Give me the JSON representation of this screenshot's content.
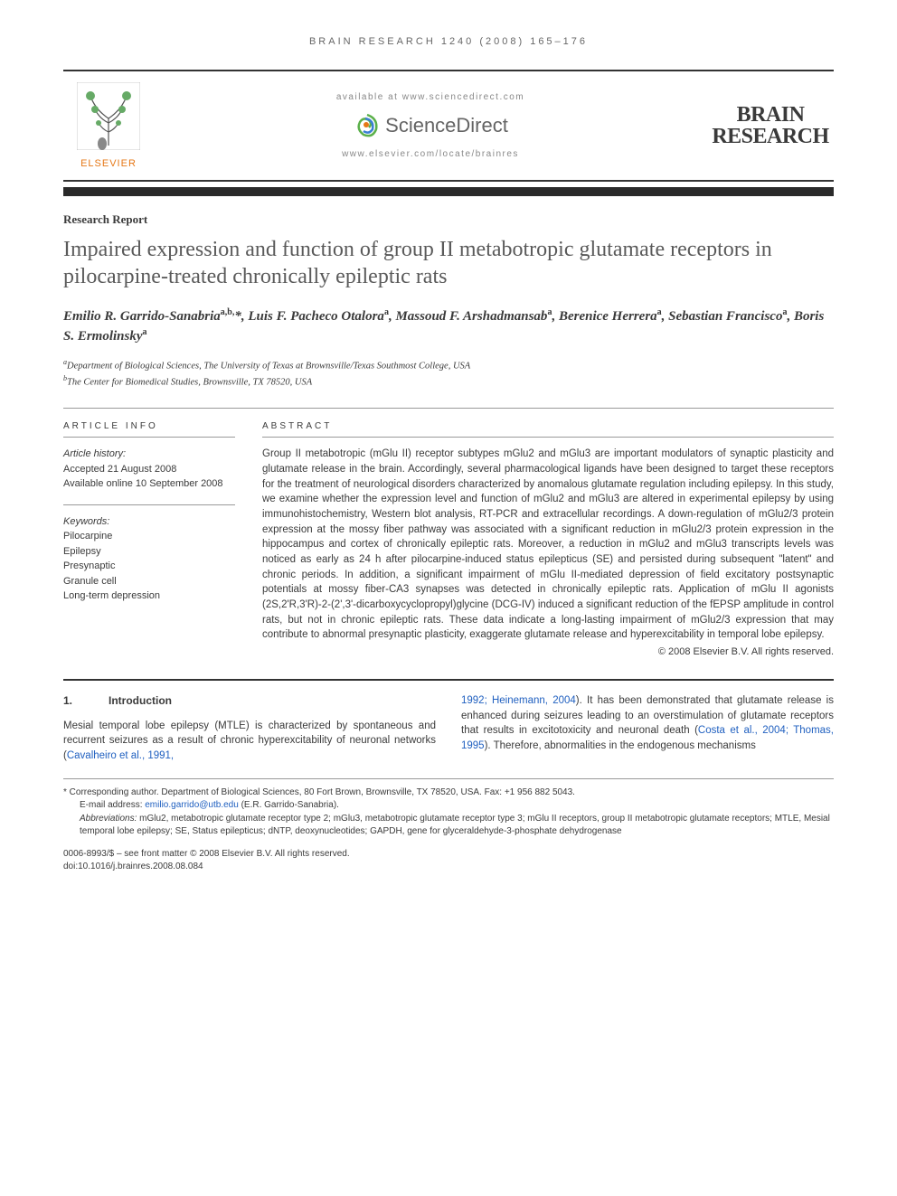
{
  "running_head": "BRAIN RESEARCH 1240 (2008) 165–176",
  "header": {
    "elsevier_label": "ELSEVIER",
    "available_line": "available at www.sciencedirect.com",
    "sd_name": "ScienceDirect",
    "journal_url": "www.elsevier.com/locate/brainres",
    "journal_name_l1": "BRAIN",
    "journal_name_l2": "RESEARCH"
  },
  "article": {
    "type": "Research Report",
    "title": "Impaired expression and function of group II metabotropic glutamate receptors in pilocarpine-treated chronically epileptic rats",
    "authors_html": "Emilio R. Garrido-Sanabria<sup>a,b,</sup>*, Luis F. Pacheco Otalora<sup>a</sup>, Massoud F. Arshadmansab<sup>a</sup>, Berenice Herrera<sup>a</sup>, Sebastian Francisco<sup>a</sup>, Boris S. Ermolinsky<sup>a</sup>",
    "affil_a": "Department of Biological Sciences, The University of Texas at Brownsville/Texas Southmost College, USA",
    "affil_b": "The Center for Biomedical Studies, Brownsville, TX 78520, USA"
  },
  "info": {
    "head": "ARTICLE INFO",
    "history_label": "Article history:",
    "accepted": "Accepted 21 August 2008",
    "online": "Available online 10 September 2008",
    "keywords_label": "Keywords:",
    "keywords": [
      "Pilocarpine",
      "Epilepsy",
      "Presynaptic",
      "Granule cell",
      "Long-term depression"
    ]
  },
  "abstract": {
    "head": "ABSTRACT",
    "body": "Group II metabotropic (mGlu II) receptor subtypes mGlu2 and mGlu3 are important modulators of synaptic plasticity and glutamate release in the brain. Accordingly, several pharmacological ligands have been designed to target these receptors for the treatment of neurological disorders characterized by anomalous glutamate regulation including epilepsy. In this study, we examine whether the expression level and function of mGlu2 and mGlu3 are altered in experimental epilepsy by using immunohistochemistry, Western blot analysis, RT-PCR and extracellular recordings. A down-regulation of mGlu2/3 protein expression at the mossy fiber pathway was associated with a significant reduction in mGlu2/3 protein expression in the hippocampus and cortex of chronically epileptic rats. Moreover, a reduction in mGlu2 and mGlu3 transcripts levels was noticed as early as 24 h after pilocarpine-induced status epilepticus (SE) and persisted during subsequent \"latent\" and chronic periods. In addition, a significant impairment of mGlu II-mediated depression of field excitatory postsynaptic potentials at mossy fiber-CA3 synapses was detected in chronically epileptic rats. Application of mGlu II agonists (2S,2'R,3'R)-2-(2',3'-dicarboxycyclopropyl)glycine (DCG-IV) induced a significant reduction of the fEPSP amplitude in control rats, but not in chronic epileptic rats. These data indicate a long-lasting impairment of mGlu2/3 expression that may contribute to abnormal presynaptic plasticity, exaggerate glutamate release and hyperexcitability in temporal lobe epilepsy.",
    "copyright": "© 2008 Elsevier B.V. All rights reserved."
  },
  "intro": {
    "num": "1.",
    "head": "Introduction",
    "col1": "Mesial temporal lobe epilepsy (MTLE) is characterized by spontaneous and recurrent seizures as a result of chronic hyperexcitability of neuronal networks (",
    "col1_ref": "Cavalheiro et al., 1991,",
    "col2_ref": "1992; Heinemann, 2004",
    "col2_a": "). It has been demonstrated that glutamate release is enhanced during seizures leading to an overstimulation of glutamate receptors that results in excitotoxicity and neuronal death (",
    "col2_ref2": "Costa et al., 2004; Thomas, 1995",
    "col2_b": "). Therefore, abnormalities in the endogenous mechanisms"
  },
  "footnotes": {
    "corresponding": "* Corresponding author. Department of Biological Sciences, 80 Fort Brown, Brownsville, TX 78520, USA. Fax: +1 956 882 5043.",
    "email_label": "E-mail address: ",
    "email": "emilio.garrido@utb.edu",
    "email_tail": " (E.R. Garrido-Sanabria).",
    "abbrev_label": "Abbreviations: ",
    "abbrev": "mGlu2, metabotropic glutamate receptor type 2; mGlu3, metabotropic glutamate receptor type 3; mGlu II receptors, group II metabotropic glutamate receptors; MTLE, Mesial temporal lobe epilepsy; SE, Status epilepticus; dNTP, deoxynucleotides; GAPDH, gene for glyceraldehyde-3-phosphate dehydrogenase"
  },
  "footer": {
    "line1": "0006-8993/$ – see front matter © 2008 Elsevier B.V. All rights reserved.",
    "line2": "doi:10.1016/j.brainres.2008.08.084"
  },
  "colors": {
    "text": "#3a3a3a",
    "orange": "#e67817",
    "link": "#2060c0",
    "rule": "#2a2a2a",
    "muted": "#888888"
  }
}
